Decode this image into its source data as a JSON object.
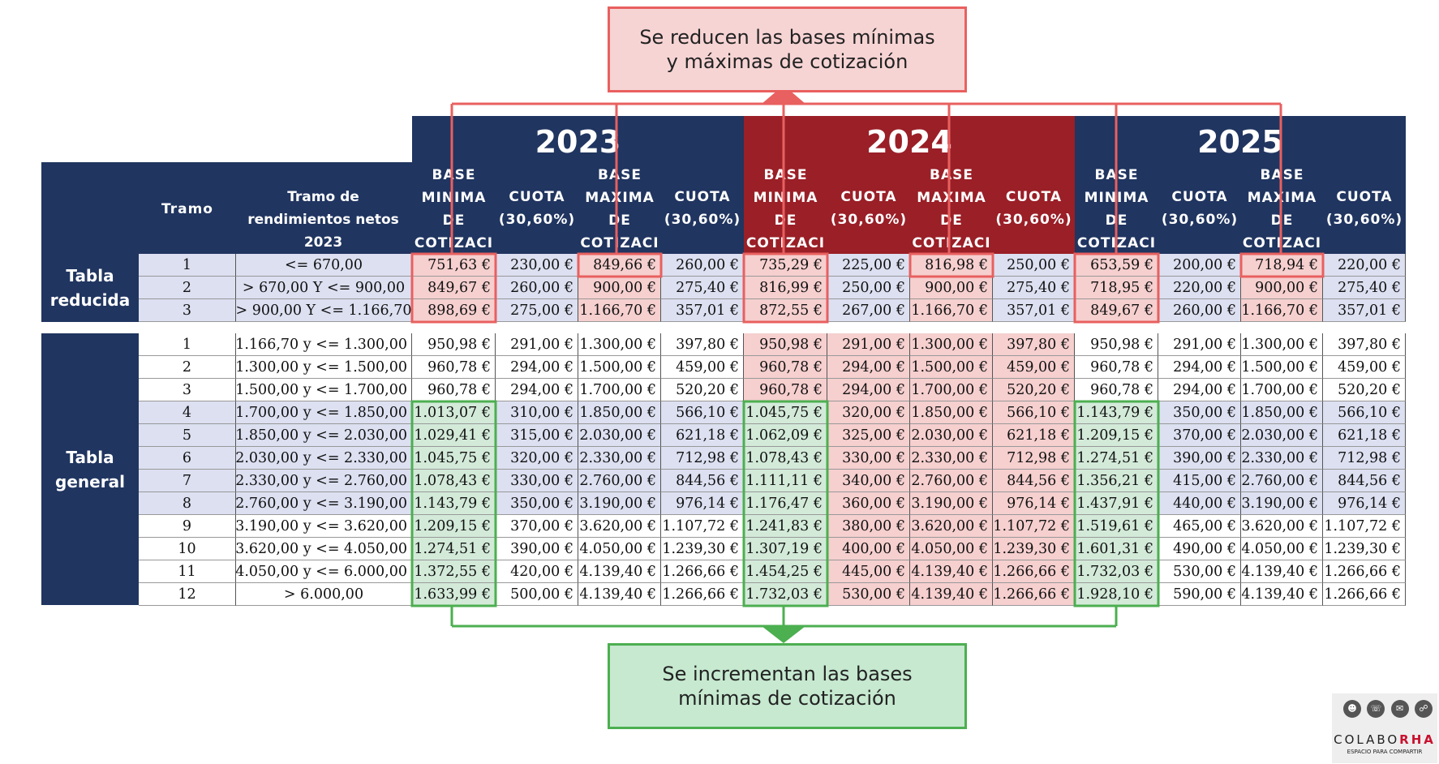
{
  "notes": {
    "top": "Se reducen las bases mínimas\ny máximas de cotización",
    "bottom": "Se incrementan las bases\nmínimas de cotización"
  },
  "years": [
    "2023",
    "2024",
    "2025"
  ],
  "headers": {
    "tramo": "Tramo",
    "rendimientos": "Tramo de rendimientos netos 2023",
    "base_minima": "BASE\nMINIMA\nDE\nCOTIZACI",
    "base_maxima": "BASE\nMAXIMA\nDE\nCOTIZACI",
    "cuota": "CUOTA\n(30,60%)"
  },
  "sections": {
    "reducida": "Tabla\nreducida",
    "general": "Tabla\ngeneral"
  },
  "colors": {
    "header_blue": "#203560",
    "header_red_2024": "#9a1f27",
    "row_lavender": "#dce0f1",
    "highlight_red": "#f6cfcf",
    "highlight_green": "#d3ead9",
    "box_red": "#e8605f",
    "box_green": "#4caf50"
  },
  "rows_reducida": [
    [
      "1",
      "<= 670,00",
      "751,63 €",
      "230,00 €",
      "849,66 €",
      "260,00 €",
      "735,29 €",
      "225,00 €",
      "816,98 €",
      "250,00 €",
      "653,59 €",
      "200,00 €",
      "718,94 €",
      "220,00 €"
    ],
    [
      "2",
      "> 670,00 Y <= 900,00",
      "849,67 €",
      "260,00 €",
      "900,00 €",
      "275,40 €",
      "816,99 €",
      "250,00 €",
      "900,00 €",
      "275,40 €",
      "718,95 €",
      "220,00 €",
      "900,00 €",
      "275,40 €"
    ],
    [
      "3",
      "> 900,00 Y <= 1.166,70",
      "898,69 €",
      "275,00 €",
      "1.166,70 €",
      "357,01 €",
      "872,55 €",
      "267,00 €",
      "1.166,70 €",
      "357,01 €",
      "849,67 €",
      "260,00 €",
      "1.166,70 €",
      "357,01 €"
    ]
  ],
  "rows_general": [
    [
      "1",
      "> 1.166,70 y <= 1.300,00",
      "950,98 €",
      "291,00 €",
      "1.300,00 €",
      "397,80 €",
      "950,98 €",
      "291,00 €",
      "1.300,00 €",
      "397,80 €",
      "950,98 €",
      "291,00 €",
      "1.300,00 €",
      "397,80 €"
    ],
    [
      "2",
      "> 1.300,00 y <= 1.500,00",
      "960,78 €",
      "294,00 €",
      "1.500,00 €",
      "459,00 €",
      "960,78 €",
      "294,00 €",
      "1.500,00 €",
      "459,00 €",
      "960,78 €",
      "294,00 €",
      "1.500,00 €",
      "459,00 €"
    ],
    [
      "3",
      "> 1.500,00 y <= 1.700,00",
      "960,78 €",
      "294,00 €",
      "1.700,00 €",
      "520,20 €",
      "960,78 €",
      "294,00 €",
      "1.700,00 €",
      "520,20 €",
      "960,78 €",
      "294,00 €",
      "1.700,00 €",
      "520,20 €"
    ],
    [
      "4",
      "> 1.700,00 y <= 1.850,00",
      "1.013,07 €",
      "310,00 €",
      "1.850,00 €",
      "566,10 €",
      "1.045,75 €",
      "320,00 €",
      "1.850,00 €",
      "566,10 €",
      "1.143,79 €",
      "350,00 €",
      "1.850,00 €",
      "566,10 €"
    ],
    [
      "5",
      "> 1.850,00 y <= 2.030,00",
      "1.029,41 €",
      "315,00 €",
      "2.030,00 €",
      "621,18 €",
      "1.062,09 €",
      "325,00 €",
      "2.030,00 €",
      "621,18 €",
      "1.209,15 €",
      "370,00 €",
      "2.030,00 €",
      "621,18 €"
    ],
    [
      "6",
      "> 2.030,00 y <= 2.330,00",
      "1.045,75 €",
      "320,00 €",
      "2.330,00 €",
      "712,98 €",
      "1.078,43 €",
      "330,00 €",
      "2.330,00 €",
      "712,98 €",
      "1.274,51 €",
      "390,00 €",
      "2.330,00 €",
      "712,98 €"
    ],
    [
      "7",
      "> 2.330,00 y <= 2.760,00",
      "1.078,43 €",
      "330,00 €",
      "2.760,00 €",
      "844,56 €",
      "1.111,11 €",
      "340,00 €",
      "2.760,00 €",
      "844,56 €",
      "1.356,21 €",
      "415,00 €",
      "2.760,00 €",
      "844,56 €"
    ],
    [
      "8",
      "> 2.760,00 y <= 3.190,00",
      "1.143,79 €",
      "350,00 €",
      "3.190,00 €",
      "976,14 €",
      "1.176,47 €",
      "360,00 €",
      "3.190,00 €",
      "976,14 €",
      "1.437,91 €",
      "440,00 €",
      "3.190,00 €",
      "976,14 €"
    ],
    [
      "9",
      "> 3.190,00 y <= 3.620,00",
      "1.209,15 €",
      "370,00 €",
      "3.620,00 €",
      "1.107,72 €",
      "1.241,83 €",
      "380,00 €",
      "3.620,00 €",
      "1.107,72 €",
      "1.519,61 €",
      "465,00 €",
      "3.620,00 €",
      "1.107,72 €"
    ],
    [
      "10",
      "> 3.620,00 y <= 4.050,00",
      "1.274,51 €",
      "390,00 €",
      "4.050,00 €",
      "1.239,30 €",
      "1.307,19 €",
      "400,00 €",
      "4.050,00 €",
      "1.239,30 €",
      "1.601,31 €",
      "490,00 €",
      "4.050,00 €",
      "1.239,30 €"
    ],
    [
      "11",
      "> 4.050,00 y <= 6.000,00",
      "1.372,55 €",
      "420,00 €",
      "4.139,40 €",
      "1.266,66 €",
      "1.454,25 €",
      "445,00 €",
      "4.139,40 €",
      "1.266,66 €",
      "1.732,03 €",
      "530,00 €",
      "4.139,40 €",
      "1.266,66 €"
    ],
    [
      "12",
      "> 6.000,00",
      "1.633,99 €",
      "500,00 €",
      "4.139,40 €",
      "1.266,66 €",
      "1.732,03 €",
      "530,00 €",
      "4.139,40 €",
      "1.266,66 €",
      "1.928,10 €",
      "590,00 €",
      "4.139,40 €",
      "1.266,66 €"
    ]
  ],
  "logo": {
    "brand_a": "COLABO",
    "brand_b": "RHA",
    "tagline": "ESPACIO PARA COMPARTIR"
  }
}
